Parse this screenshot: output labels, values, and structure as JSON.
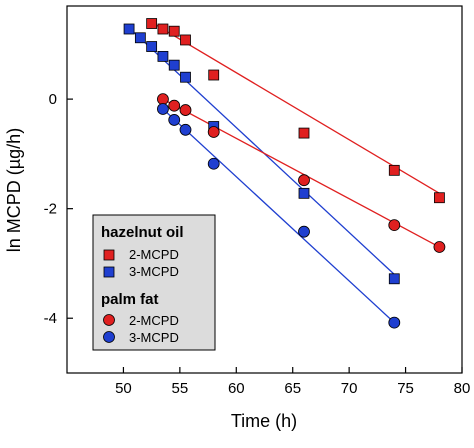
{
  "chart_data": {
    "type": "scatter",
    "title": "",
    "xlabel": "Time (h)",
    "ylabel": "ln MCPD (µg/h)",
    "xlim": [
      45,
      80
    ],
    "ylim": [
      -5,
      1.7
    ],
    "x_ticks": [
      50,
      55,
      60,
      65,
      70,
      75,
      80
    ],
    "y_ticks": [
      -4,
      -2,
      0
    ],
    "grid": false,
    "legend_placement": "bottom-left",
    "legend": [
      {
        "group": "hazelnut oil",
        "entries": [
          {
            "label": "2-MCPD",
            "color": "#e02020",
            "marker": "square"
          },
          {
            "label": "3-MCPD",
            "color": "#1f3fd0",
            "marker": "square"
          }
        ]
      },
      {
        "group": "palm fat",
        "entries": [
          {
            "label": "2-MCPD",
            "color": "#e02020",
            "marker": "circle"
          },
          {
            "label": "3-MCPD",
            "color": "#1f3fd0",
            "marker": "circle"
          }
        ]
      }
    ],
    "series": [
      {
        "name": "hazelnut oil 2-MCPD",
        "color": "#e02020",
        "marker": "square",
        "x": [
          52.5,
          53.5,
          54.5,
          55.5,
          58,
          66,
          74,
          78
        ],
        "y": [
          1.38,
          1.28,
          1.24,
          1.08,
          0.44,
          -0.62,
          -1.3,
          -1.8
        ],
        "fit": {
          "x": [
            52.5,
            78
          ],
          "y": [
            1.4,
            -1.72
          ]
        }
      },
      {
        "name": "hazelnut oil 3-MCPD",
        "color": "#1f3fd0",
        "marker": "square",
        "x": [
          50.5,
          51.5,
          52.5,
          53.5,
          54.5,
          55.5,
          58,
          66,
          74
        ],
        "y": [
          1.28,
          1.12,
          0.96,
          0.78,
          0.62,
          0.4,
          -0.5,
          -1.72,
          -3.28
        ],
        "fit": {
          "x": [
            50.5,
            74
          ],
          "y": [
            1.3,
            -3.2
          ]
        }
      },
      {
        "name": "palm fat 2-MCPD",
        "color": "#e02020",
        "marker": "circle",
        "x": [
          53.5,
          54.5,
          55.5,
          58,
          66,
          74,
          78
        ],
        "y": [
          0.0,
          -0.12,
          -0.2,
          -0.6,
          -1.48,
          -2.3,
          -2.7
        ],
        "fit": {
          "x": [
            53.5,
            78
          ],
          "y": [
            0.0,
            -2.7
          ]
        }
      },
      {
        "name": "palm fat 3-MCPD",
        "color": "#1f3fd0",
        "marker": "circle",
        "x": [
          53.5,
          54.5,
          55.5,
          58,
          66,
          74
        ],
        "y": [
          -0.18,
          -0.38,
          -0.56,
          -1.18,
          -2.42,
          -4.08
        ],
        "fit": {
          "x": [
            53.5,
            74
          ],
          "y": [
            -0.18,
            -4.08
          ]
        }
      }
    ]
  }
}
